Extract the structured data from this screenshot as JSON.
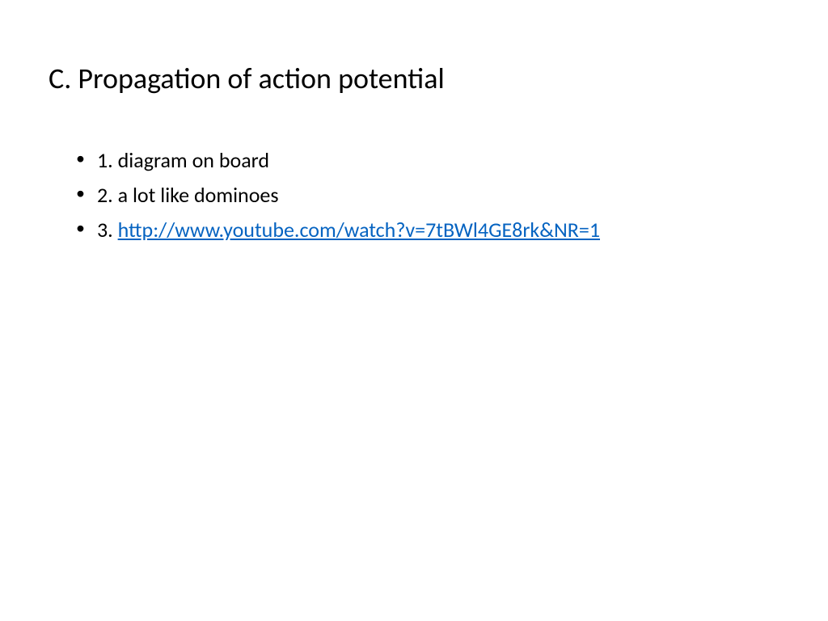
{
  "slide": {
    "title": "C.  Propagation of action potential",
    "title_fontsize": 36,
    "title_color": "#000000",
    "bullets": [
      {
        "prefix": "1.  ",
        "text": "diagram on board",
        "is_link": false
      },
      {
        "prefix": "2.  ",
        "text": "a lot like dominoes",
        "is_link": false
      },
      {
        "prefix": "3. ",
        "text": "http://www.youtube.com/watch?v=7tBWl4GE8rk&NR=1",
        "is_link": true
      }
    ],
    "body_fontsize": 26,
    "body_color": "#000000",
    "link_color": "#0563c1",
    "background_color": "#ffffff",
    "bullet_marker": "•"
  }
}
